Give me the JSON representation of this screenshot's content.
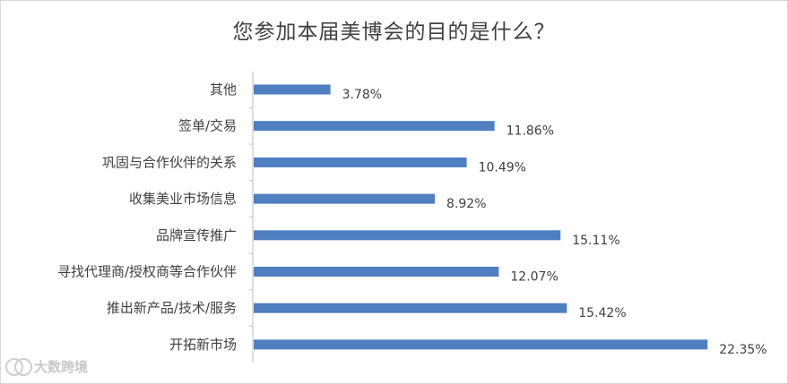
{
  "chart_data": {
    "type": "bar",
    "orientation": "horizontal",
    "title": "您参加本届美博会的目的是什么？",
    "categories": [
      "其他",
      "签单/交易",
      "巩固与合作伙伴的关系",
      "收集美业市场信息",
      "品牌宣传推广",
      "寻找代理商/授权商等合作伙伴",
      "推出新产品/技术/服务",
      "开拓新市场"
    ],
    "values": [
      3.78,
      11.86,
      10.49,
      8.92,
      15.11,
      12.07,
      15.42,
      22.35
    ],
    "labels": [
      "3.78%",
      "11.86%",
      "10.49%",
      "8.92%",
      "15.11%",
      "12.07%",
      "15.42%",
      "22.35%"
    ],
    "xlim": [
      0,
      23
    ],
    "bar_color": "#4f7fc0",
    "grid": false,
    "legend": false
  },
  "watermark": {
    "text": "大数跨境"
  }
}
